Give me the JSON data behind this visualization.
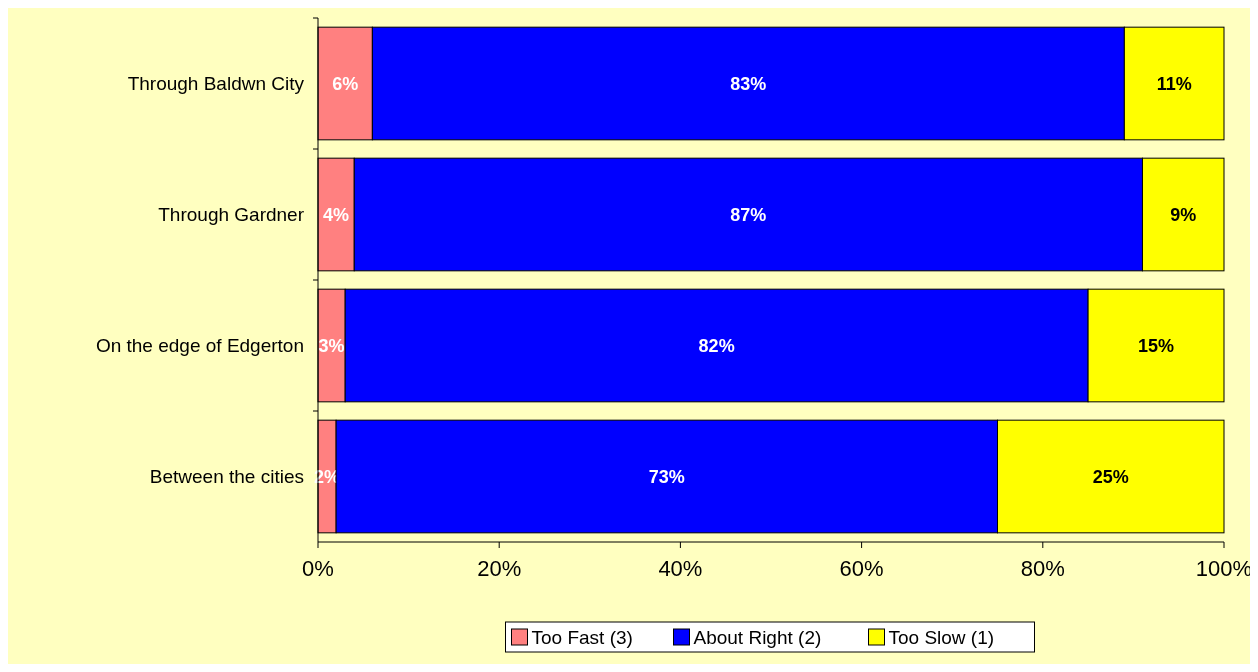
{
  "chart_data": {
    "type": "bar",
    "orientation": "horizontal",
    "stacked": true,
    "categories": [
      "Through Baldwn City",
      "Through Gardner",
      "On the edge of Edgerton",
      "Between the cities"
    ],
    "series": [
      {
        "name": "Too Fast (3)",
        "color": "#ff8080",
        "values": [
          6,
          4,
          3,
          2
        ],
        "value_labels": [
          "6%",
          "4%",
          "3%",
          "2%"
        ]
      },
      {
        "name": "About Right (2)",
        "color": "#0000ff",
        "values": [
          83,
          87,
          82,
          73
        ],
        "value_labels": [
          "83%",
          "87%",
          "82%",
          "73%"
        ]
      },
      {
        "name": "Too Slow (1)",
        "color": "#ffff00",
        "values": [
          11,
          9,
          15,
          25
        ],
        "value_labels": [
          "11%",
          "9%",
          "15%",
          "25%"
        ]
      }
    ],
    "xlim": [
      0,
      100
    ],
    "xticks": [
      {
        "value": 0,
        "label": "0%"
      },
      {
        "value": 20,
        "label": "20%"
      },
      {
        "value": 40,
        "label": "40%"
      },
      {
        "value": 60,
        "label": "60%"
      },
      {
        "value": 80,
        "label": "80%"
      },
      {
        "value": 100,
        "label": "100%"
      }
    ],
    "legend": "bottom",
    "grid": false
  }
}
